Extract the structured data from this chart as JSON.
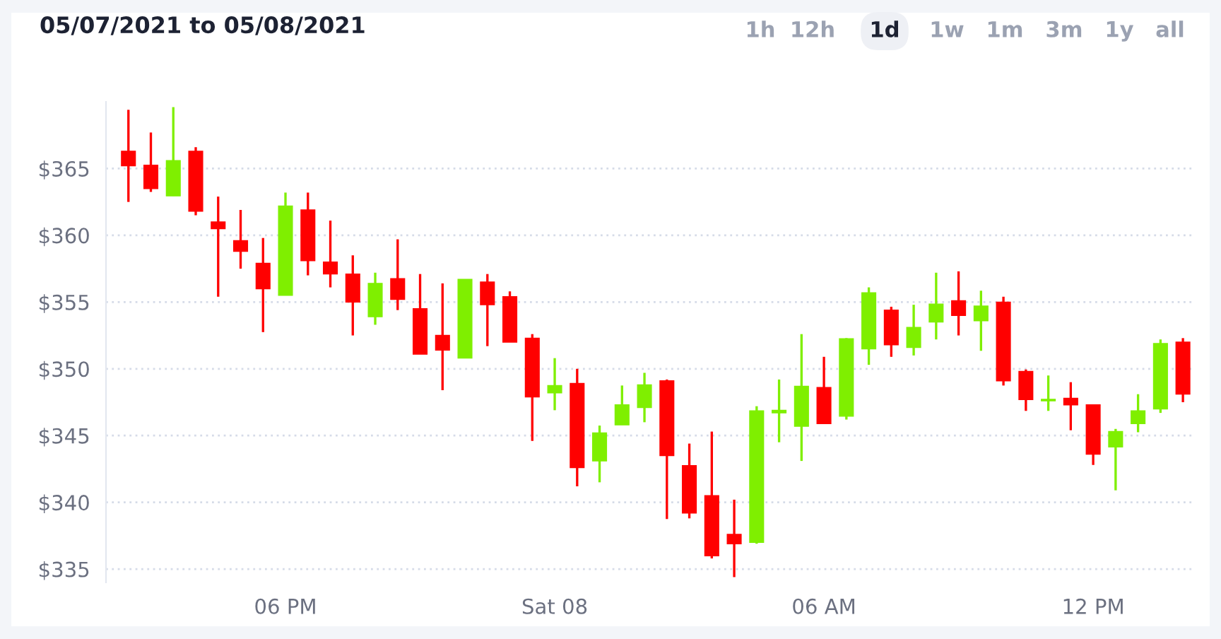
{
  "chart_data": {
    "type": "candlestick",
    "title": "05/07/2021 to 05/08/2021",
    "annotations": [
      "1h",
      "12h",
      "1d",
      "1w",
      "1m",
      "3m",
      "1y",
      "all"
    ],
    "x": [
      "2021-05-07T14:30",
      "2021-05-07T15:00",
      "2021-05-07T15:30",
      "2021-05-07T16:00",
      "2021-05-07T16:30",
      "2021-05-07T17:00",
      "2021-05-07T17:30",
      "2021-05-07T18:00",
      "2021-05-07T18:30",
      "2021-05-07T19:00",
      "2021-05-07T19:30",
      "2021-05-07T20:00",
      "2021-05-07T20:30",
      "2021-05-07T21:00",
      "2021-05-07T21:30",
      "2021-05-07T22:00",
      "2021-05-07T22:30",
      "2021-05-07T23:00",
      "2021-05-07T23:30",
      "2021-05-08T00:00",
      "2021-05-08T00:30",
      "2021-05-08T01:00",
      "2021-05-08T01:30",
      "2021-05-08T02:00",
      "2021-05-08T02:30",
      "2021-05-08T03:00",
      "2021-05-08T03:30",
      "2021-05-08T04:00",
      "2021-05-08T04:30",
      "2021-05-08T05:00",
      "2021-05-08T05:30",
      "2021-05-08T06:00",
      "2021-05-08T06:30",
      "2021-05-08T07:00",
      "2021-05-08T07:30",
      "2021-05-08T08:00",
      "2021-05-08T08:30",
      "2021-05-08T09:00",
      "2021-05-08T09:30",
      "2021-05-08T10:00",
      "2021-05-08T10:30",
      "2021-05-08T11:00",
      "2021-05-08T11:30",
      "2021-05-08T12:00",
      "2021-05-08T12:30",
      "2021-05-08T13:00",
      "2021-05-08T13:30",
      "2021-05-08T14:00"
    ],
    "ohlc": [
      [
        366.3,
        369.4,
        362.5,
        365.2
      ],
      [
        365.25,
        367.7,
        363.25,
        363.5
      ],
      [
        362.95,
        369.6,
        362.95,
        365.6
      ],
      [
        366.3,
        366.6,
        361.5,
        361.8
      ],
      [
        361.0,
        362.9,
        355.4,
        360.5
      ],
      [
        359.6,
        361.9,
        357.5,
        358.8
      ],
      [
        357.9,
        359.8,
        352.75,
        356.0
      ],
      [
        355.5,
        363.2,
        355.5,
        362.2
      ],
      [
        361.9,
        363.2,
        357.0,
        358.1
      ],
      [
        358.0,
        361.1,
        356.1,
        357.1
      ],
      [
        357.1,
        358.5,
        352.5,
        355.0
      ],
      [
        353.9,
        357.2,
        353.3,
        356.4
      ],
      [
        356.75,
        359.7,
        354.4,
        355.2
      ],
      [
        354.5,
        357.1,
        351.1,
        351.1
      ],
      [
        352.5,
        356.4,
        348.4,
        351.4
      ],
      [
        350.8,
        356.7,
        350.8,
        356.7
      ],
      [
        356.5,
        357.1,
        351.7,
        354.8
      ],
      [
        355.4,
        355.8,
        352.0,
        352.0
      ],
      [
        352.3,
        352.6,
        344.6,
        347.9
      ],
      [
        348.2,
        350.8,
        346.9,
        348.75
      ],
      [
        348.9,
        350.0,
        341.2,
        342.6
      ],
      [
        343.1,
        345.75,
        341.5,
        345.2
      ],
      [
        345.8,
        348.75,
        345.8,
        347.3
      ],
      [
        347.1,
        349.7,
        346.0,
        348.8
      ],
      [
        349.1,
        349.2,
        338.75,
        343.5
      ],
      [
        342.75,
        344.4,
        338.8,
        339.2
      ],
      [
        340.5,
        345.3,
        335.8,
        336.0
      ],
      [
        337.6,
        340.2,
        334.4,
        336.9
      ],
      [
        337.0,
        347.2,
        336.9,
        346.85
      ],
      [
        346.7,
        349.2,
        344.5,
        346.9
      ],
      [
        345.7,
        352.6,
        343.1,
        348.7
      ],
      [
        348.6,
        350.9,
        345.9,
        345.9
      ],
      [
        346.45,
        352.3,
        346.2,
        352.25
      ],
      [
        351.5,
        356.1,
        350.3,
        355.7
      ],
      [
        354.4,
        354.65,
        350.9,
        351.8
      ],
      [
        351.6,
        354.8,
        351.0,
        353.1
      ],
      [
        353.5,
        357.2,
        352.2,
        354.85
      ],
      [
        355.1,
        357.3,
        352.5,
        354.0
      ],
      [
        353.6,
        355.85,
        351.35,
        354.7
      ],
      [
        355.0,
        355.4,
        348.75,
        349.1
      ],
      [
        349.8,
        349.95,
        346.85,
        347.7
      ],
      [
        347.6,
        349.5,
        346.85,
        347.6
      ],
      [
        347.8,
        349.0,
        345.4,
        347.3
      ],
      [
        347.3,
        347.3,
        342.8,
        343.6
      ],
      [
        344.15,
        345.5,
        340.9,
        345.3
      ],
      [
        345.9,
        348.1,
        345.25,
        346.85
      ],
      [
        347.0,
        352.2,
        346.7,
        351.9
      ],
      [
        352.0,
        352.3,
        347.5,
        348.1
      ]
    ],
    "colors": [
      "#ff0000",
      "#ff0000",
      "#7fef00",
      "#ff0000",
      "#ff0000",
      "#ff0000",
      "#ff0000",
      "#7fef00",
      "#ff0000",
      "#ff0000",
      "#ff0000",
      "#7fef00",
      "#ff0000",
      "#ff0000",
      "#ff0000",
      "#7fef00",
      "#ff0000",
      "#ff0000",
      "#ff0000",
      "#7fef00",
      "#ff0000",
      "#7fef00",
      "#7fef00",
      "#7fef00",
      "#ff0000",
      "#ff0000",
      "#ff0000",
      "#ff0000",
      "#7fef00",
      "#7fef00",
      "#7fef00",
      "#ff0000",
      "#7fef00",
      "#7fef00",
      "#ff0000",
      "#7fef00",
      "#7fef00",
      "#ff0000",
      "#7fef00",
      "#ff0000",
      "#ff0000",
      "#7fef00",
      "#ff0000",
      "#ff0000",
      "#7fef00",
      "#7fef00",
      "#7fef00",
      "#ff0000"
    ],
    "xlim": [
      "2021-05-07T14:00",
      "2021-05-08T14:15"
    ],
    "xticks": [
      {
        "value": "2021-05-07T18:00",
        "label": "06 PM"
      },
      {
        "value": "2021-05-08T00:00",
        "label": "Sat 08"
      },
      {
        "value": "2021-05-08T06:00",
        "label": "06 AM"
      },
      {
        "value": "2021-05-08T12:00",
        "label": "12 PM"
      }
    ],
    "ylim": [
      334,
      370
    ],
    "yticks": [
      {
        "value": 335,
        "label": "$335"
      },
      {
        "value": 340,
        "label": "$340"
      },
      {
        "value": 345,
        "label": "$345"
      },
      {
        "value": 350,
        "label": "$350"
      },
      {
        "value": 355,
        "label": "$355"
      },
      {
        "value": 360,
        "label": "$360"
      },
      {
        "value": 365,
        "label": "$365"
      }
    ],
    "grid": "y"
  }
}
